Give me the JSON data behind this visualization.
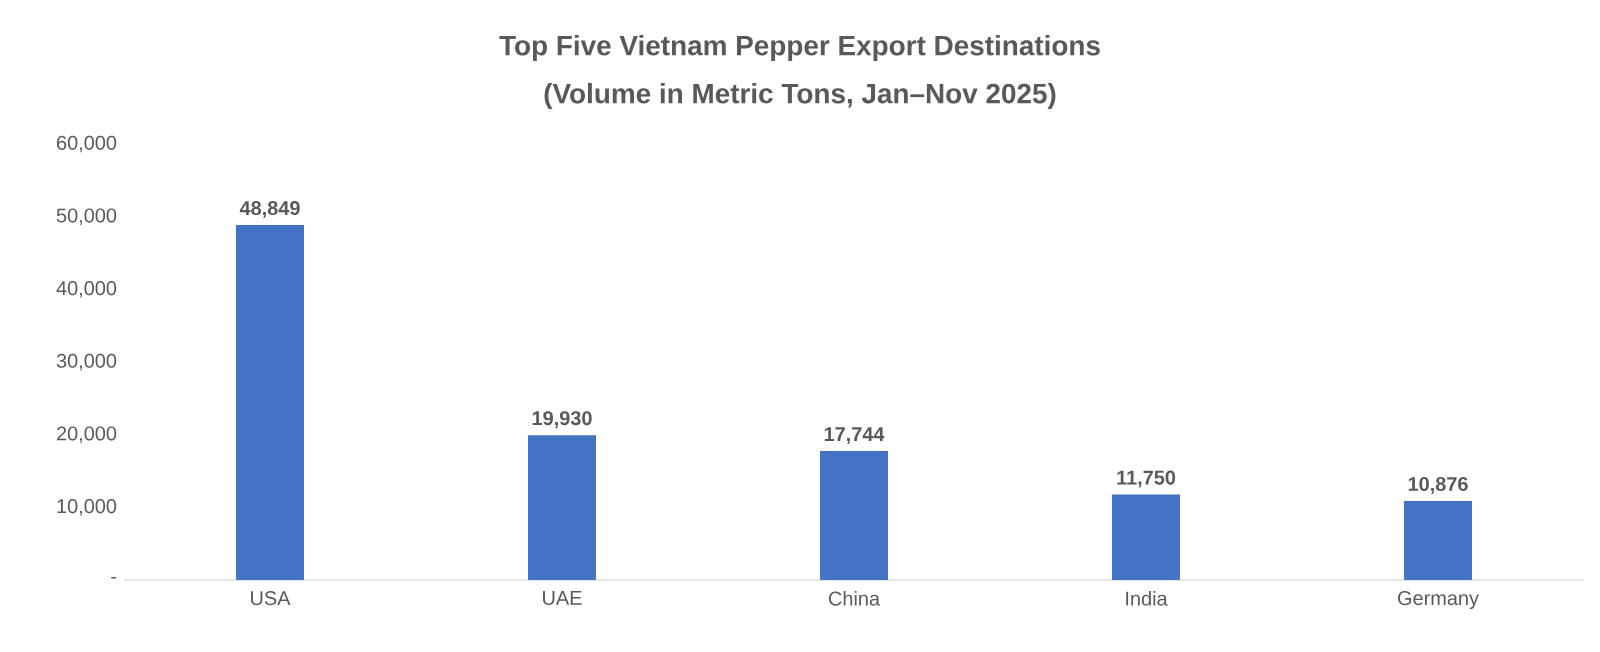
{
  "chart_data": {
    "type": "bar",
    "title": "Top Five Vietnam Pepper Export Destinations",
    "subtitle": "(Volume in Metric Tons, Jan–Nov 2025)",
    "categories": [
      "USA",
      "UAE",
      "China",
      "India",
      "Germany"
    ],
    "values": [
      48849,
      19930,
      17744,
      11750,
      10876
    ],
    "value_labels": [
      "48,849",
      "19,930",
      "17,744",
      "11,750",
      "10,876"
    ],
    "color": "#4472c4",
    "ylim": [
      0,
      60000
    ],
    "yticks": [
      {
        "value": 0,
        "label": "-"
      },
      {
        "value": 10000,
        "label": "10,000"
      },
      {
        "value": 20000,
        "label": "20,000"
      },
      {
        "value": 30000,
        "label": "30,000"
      },
      {
        "value": 40000,
        "label": "40,000"
      },
      {
        "value": 50000,
        "label": "50,000"
      },
      {
        "value": 60000,
        "label": "60,000"
      }
    ],
    "grid": false
  }
}
